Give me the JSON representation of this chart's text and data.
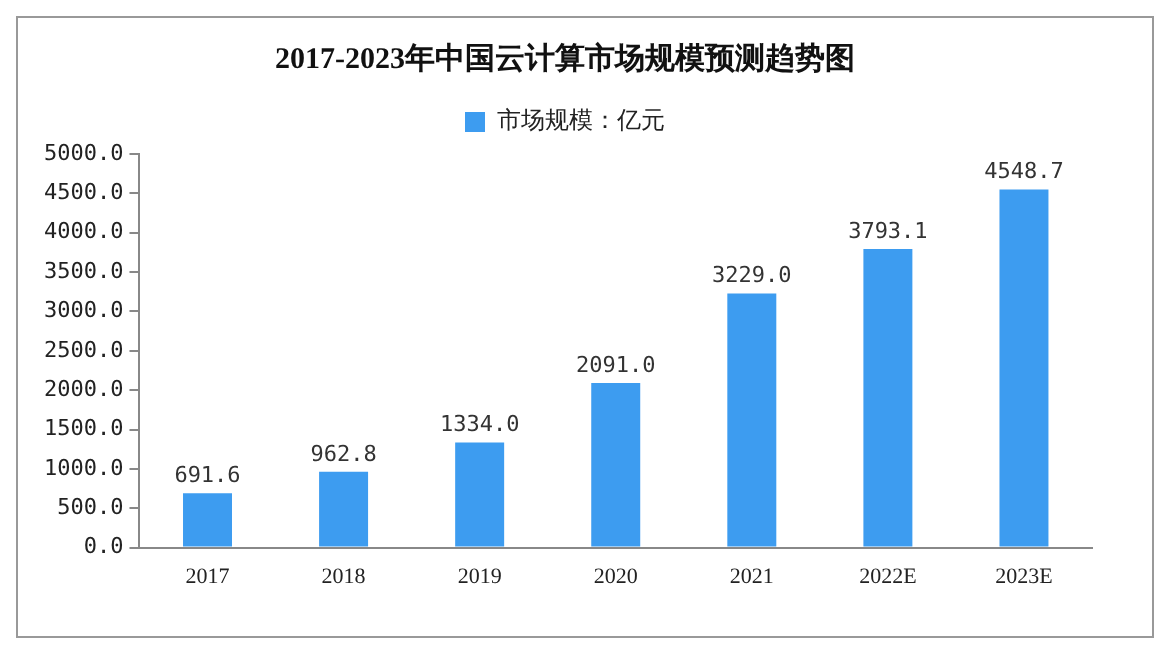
{
  "chart_data": {
    "type": "bar",
    "title": "2017-2023年中国云计算市场规模预测趋势图",
    "categories": [
      "2017",
      "2018",
      "2019",
      "2020",
      "2021",
      "2022E",
      "2023E"
    ],
    "series": [
      {
        "name": "市场规模：亿元",
        "color": "#3d9cf0",
        "values": [
          691.6,
          962.8,
          1334.0,
          2091.0,
          3229.0,
          3793.1,
          4548.7
        ],
        "value_labels": [
          "691.6",
          "962.8",
          "1334.0",
          "2091.0",
          "3229.0",
          "3793.1",
          "4548.7"
        ]
      }
    ],
    "ylim": [
      0,
      5000
    ],
    "yticks": [
      {
        "value": 0,
        "label": "0.0"
      },
      {
        "value": 500,
        "label": "500.0"
      },
      {
        "value": 1000,
        "label": "1000.0"
      },
      {
        "value": 1500,
        "label": "1500.0"
      },
      {
        "value": 2000,
        "label": "2000.0"
      },
      {
        "value": 2500,
        "label": "2500.0"
      },
      {
        "value": 3000,
        "label": "3000.0"
      },
      {
        "value": 3500,
        "label": "3500.0"
      },
      {
        "value": 4000,
        "label": "4000.0"
      },
      {
        "value": 4500,
        "label": "4500.0"
      },
      {
        "value": 5000,
        "label": "5000.0"
      }
    ],
    "grid": false,
    "legend": "top"
  }
}
